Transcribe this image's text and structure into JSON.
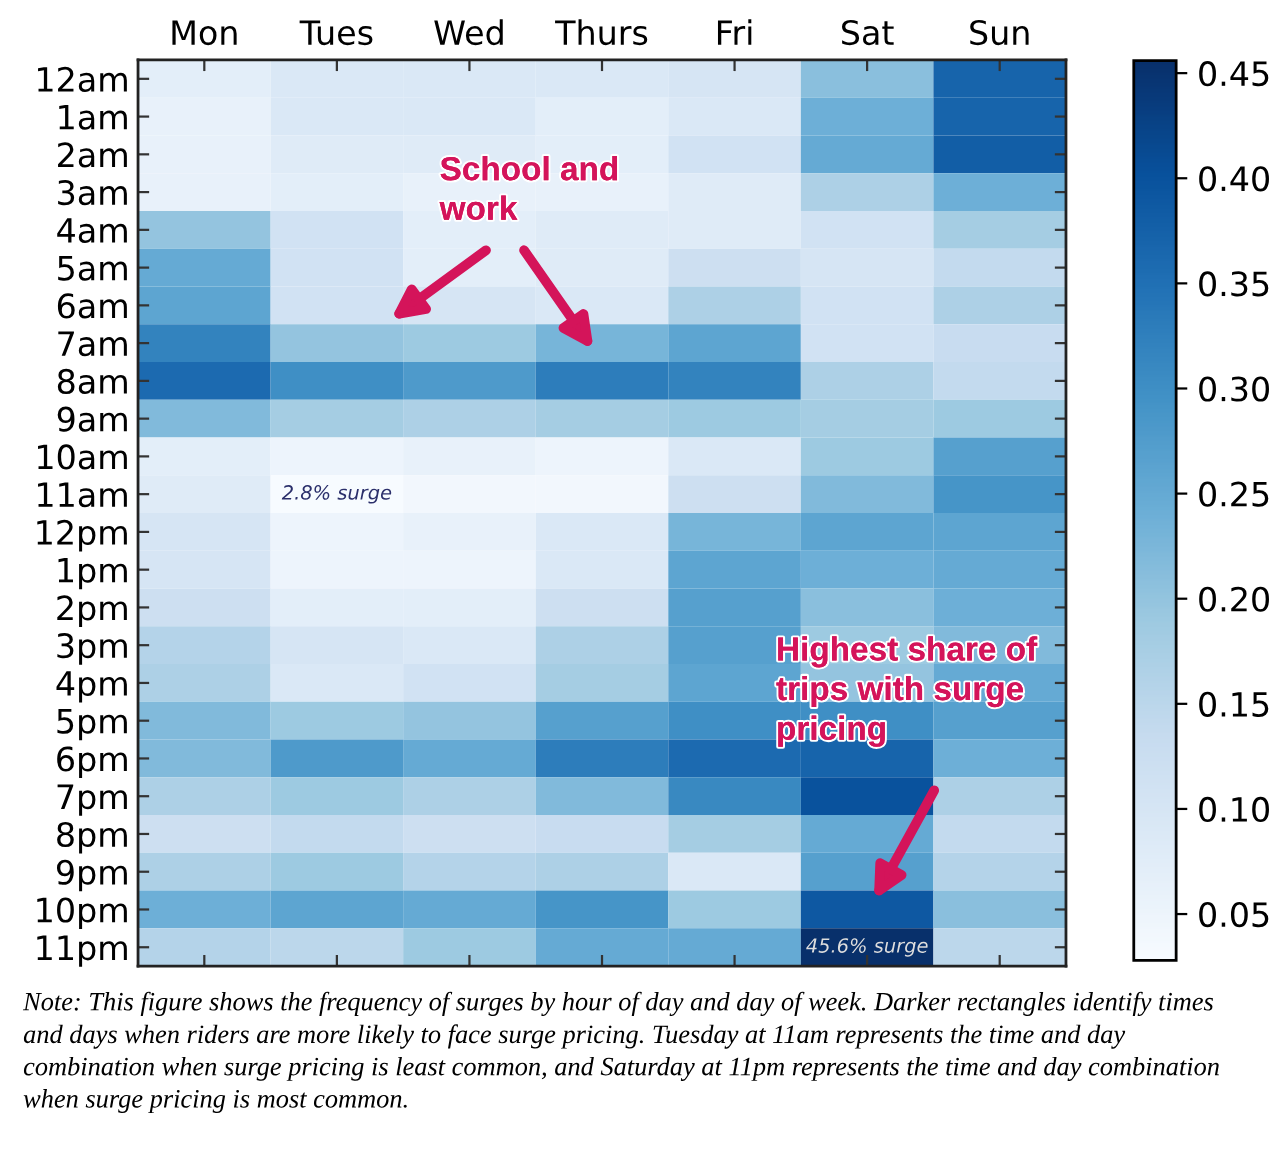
{
  "chart_data": {
    "type": "heatmap",
    "categories": [
      "Mon",
      "Tues",
      "Wed",
      "Thurs",
      "Fri",
      "Sat",
      "Sun"
    ],
    "y_categories": [
      "12am",
      "1am",
      "2am",
      "3am",
      "4am",
      "5am",
      "6am",
      "7am",
      "8am",
      "9am",
      "10am",
      "11am",
      "12pm",
      "1pm",
      "2pm",
      "3pm",
      "4pm",
      "5pm",
      "6pm",
      "7pm",
      "8pm",
      "9pm",
      "10pm",
      "11pm"
    ],
    "cells": [
      [
        0.07,
        0.09,
        0.09,
        0.09,
        0.1,
        0.21,
        0.37
      ],
      [
        0.06,
        0.09,
        0.09,
        0.07,
        0.09,
        0.24,
        0.37
      ],
      [
        0.06,
        0.08,
        0.08,
        0.07,
        0.11,
        0.25,
        0.38
      ],
      [
        0.06,
        0.07,
        0.06,
        0.06,
        0.08,
        0.17,
        0.24
      ],
      [
        0.2,
        0.11,
        0.07,
        0.08,
        0.08,
        0.11,
        0.18
      ],
      [
        0.25,
        0.11,
        0.07,
        0.08,
        0.12,
        0.1,
        0.14
      ],
      [
        0.26,
        0.11,
        0.1,
        0.09,
        0.17,
        0.11,
        0.17
      ],
      [
        0.32,
        0.2,
        0.19,
        0.23,
        0.26,
        0.11,
        0.13
      ],
      [
        0.36,
        0.3,
        0.28,
        0.33,
        0.32,
        0.17,
        0.14
      ],
      [
        0.22,
        0.18,
        0.17,
        0.18,
        0.19,
        0.18,
        0.19
      ],
      [
        0.07,
        0.05,
        0.06,
        0.05,
        0.09,
        0.19,
        0.27
      ],
      [
        0.08,
        0.028,
        0.04,
        0.04,
        0.12,
        0.22,
        0.29
      ],
      [
        0.1,
        0.05,
        0.06,
        0.09,
        0.23,
        0.26,
        0.26
      ],
      [
        0.1,
        0.05,
        0.05,
        0.09,
        0.26,
        0.24,
        0.25
      ],
      [
        0.12,
        0.07,
        0.07,
        0.12,
        0.27,
        0.21,
        0.24
      ],
      [
        0.16,
        0.1,
        0.09,
        0.17,
        0.27,
        0.19,
        0.22
      ],
      [
        0.17,
        0.09,
        0.11,
        0.18,
        0.26,
        0.2,
        0.25
      ],
      [
        0.22,
        0.19,
        0.2,
        0.27,
        0.3,
        0.3,
        0.27
      ],
      [
        0.22,
        0.28,
        0.25,
        0.33,
        0.36,
        0.37,
        0.24
      ],
      [
        0.17,
        0.19,
        0.17,
        0.22,
        0.31,
        0.4,
        0.17
      ],
      [
        0.12,
        0.14,
        0.12,
        0.13,
        0.18,
        0.25,
        0.14
      ],
      [
        0.17,
        0.19,
        0.16,
        0.17,
        0.09,
        0.27,
        0.16
      ],
      [
        0.24,
        0.26,
        0.25,
        0.29,
        0.19,
        0.39,
        0.21
      ],
      [
        0.16,
        0.15,
        0.19,
        0.25,
        0.25,
        0.456,
        0.15
      ]
    ],
    "cell_labels": [
      [
        null,
        null,
        null,
        null,
        null,
        null,
        null
      ],
      [
        null,
        null,
        null,
        null,
        null,
        null,
        null
      ],
      [
        null,
        null,
        null,
        null,
        null,
        null,
        null
      ],
      [
        null,
        null,
        null,
        null,
        null,
        null,
        null
      ],
      [
        null,
        null,
        null,
        null,
        null,
        null,
        null
      ],
      [
        null,
        null,
        null,
        null,
        null,
        null,
        null
      ],
      [
        null,
        null,
        null,
        null,
        null,
        null,
        null
      ],
      [
        null,
        null,
        null,
        null,
        null,
        null,
        null
      ],
      [
        null,
        null,
        null,
        null,
        null,
        null,
        null
      ],
      [
        null,
        null,
        null,
        null,
        null,
        null,
        null
      ],
      [
        null,
        null,
        null,
        null,
        null,
        null,
        null
      ],
      [
        null,
        "2.8% surge",
        null,
        null,
        null,
        null,
        null
      ],
      [
        null,
        null,
        null,
        null,
        null,
        null,
        null
      ],
      [
        null,
        null,
        null,
        null,
        null,
        null,
        null
      ],
      [
        null,
        null,
        null,
        null,
        null,
        null,
        null
      ],
      [
        null,
        null,
        null,
        null,
        null,
        null,
        null
      ],
      [
        null,
        null,
        null,
        null,
        null,
        null,
        null
      ],
      [
        null,
        null,
        null,
        null,
        null,
        null,
        null
      ],
      [
        null,
        null,
        null,
        null,
        null,
        null,
        null
      ],
      [
        null,
        null,
        null,
        null,
        null,
        null,
        null
      ],
      [
        null,
        null,
        null,
        null,
        null,
        null,
        null
      ],
      [
        null,
        null,
        null,
        null,
        null,
        null,
        null
      ],
      [
        null,
        null,
        null,
        null,
        null,
        null,
        null
      ],
      [
        null,
        null,
        null,
        null,
        null,
        "45.6% surge",
        null
      ]
    ],
    "clim": [
      0.028,
      0.456
    ],
    "cticks": [
      0.05,
      {
        "value": 0.1,
        "label": "0.10"
      },
      0.15,
      {
        "value": 0.2,
        "label": "0.20"
      },
      0.25,
      {
        "value": 0.3,
        "label": "0.30"
      },
      0.35,
      {
        "value": 0.4,
        "label": "0.40"
      },
      0.45
    ],
    "annotations": [
      "School and work",
      "Highest share of trips with surge pricing",
      "Note: This figure shows the frequency of surges by hour of day and day of week. Darker rectangles identify times and days when riders are more likely to face surge pricing. Tuesday at 11am represents the time and day combination when surge pricing is least common, and Saturday at 11pm represents the time and day combination when surge pricing is most common."
    ]
  }
}
